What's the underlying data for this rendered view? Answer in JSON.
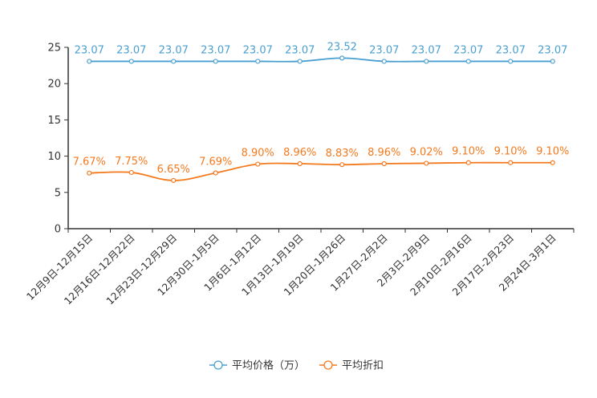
{
  "chart_data": {
    "type": "line",
    "categories": [
      "12月9日-12月15日",
      "12月16日-12月22日",
      "12月23日-12月29日",
      "12月30日-1月5日",
      "1月6日-1月12日",
      "1月13日-1月19日",
      "1月20日-1月26日",
      "1月27日-2月2日",
      "2月3日-2月9日",
      "2月10日-2月16日",
      "2月17日-2月23日",
      "2月24日-3月1日"
    ],
    "ylim": [
      0,
      25
    ],
    "yticks": [
      0,
      5,
      10,
      15,
      20,
      25
    ],
    "grid": false,
    "legend_position": "bottom-center",
    "series": [
      {
        "name": "平均价格（万）",
        "color": "#4a9fd0",
        "values": [
          23.07,
          23.07,
          23.07,
          23.07,
          23.07,
          23.07,
          23.52,
          23.07,
          23.07,
          23.07,
          23.07,
          23.07
        ],
        "labels": [
          "23.07",
          "23.07",
          "23.07",
          "23.07",
          "23.07",
          "23.07",
          "23.52",
          "23.07",
          "23.07",
          "23.07",
          "23.07",
          "23.07"
        ]
      },
      {
        "name": "平均折扣",
        "color": "#f47a1f",
        "values": [
          7.67,
          7.75,
          6.65,
          7.69,
          8.9,
          8.96,
          8.83,
          8.96,
          9.02,
          9.1,
          9.1,
          9.1
        ],
        "labels": [
          "7.67%",
          "7.75%",
          "6.65%",
          "7.69%",
          "8.90%",
          "8.96%",
          "8.83%",
          "8.96%",
          "9.02%",
          "9.10%",
          "9.10%",
          "9.10%"
        ]
      }
    ]
  }
}
